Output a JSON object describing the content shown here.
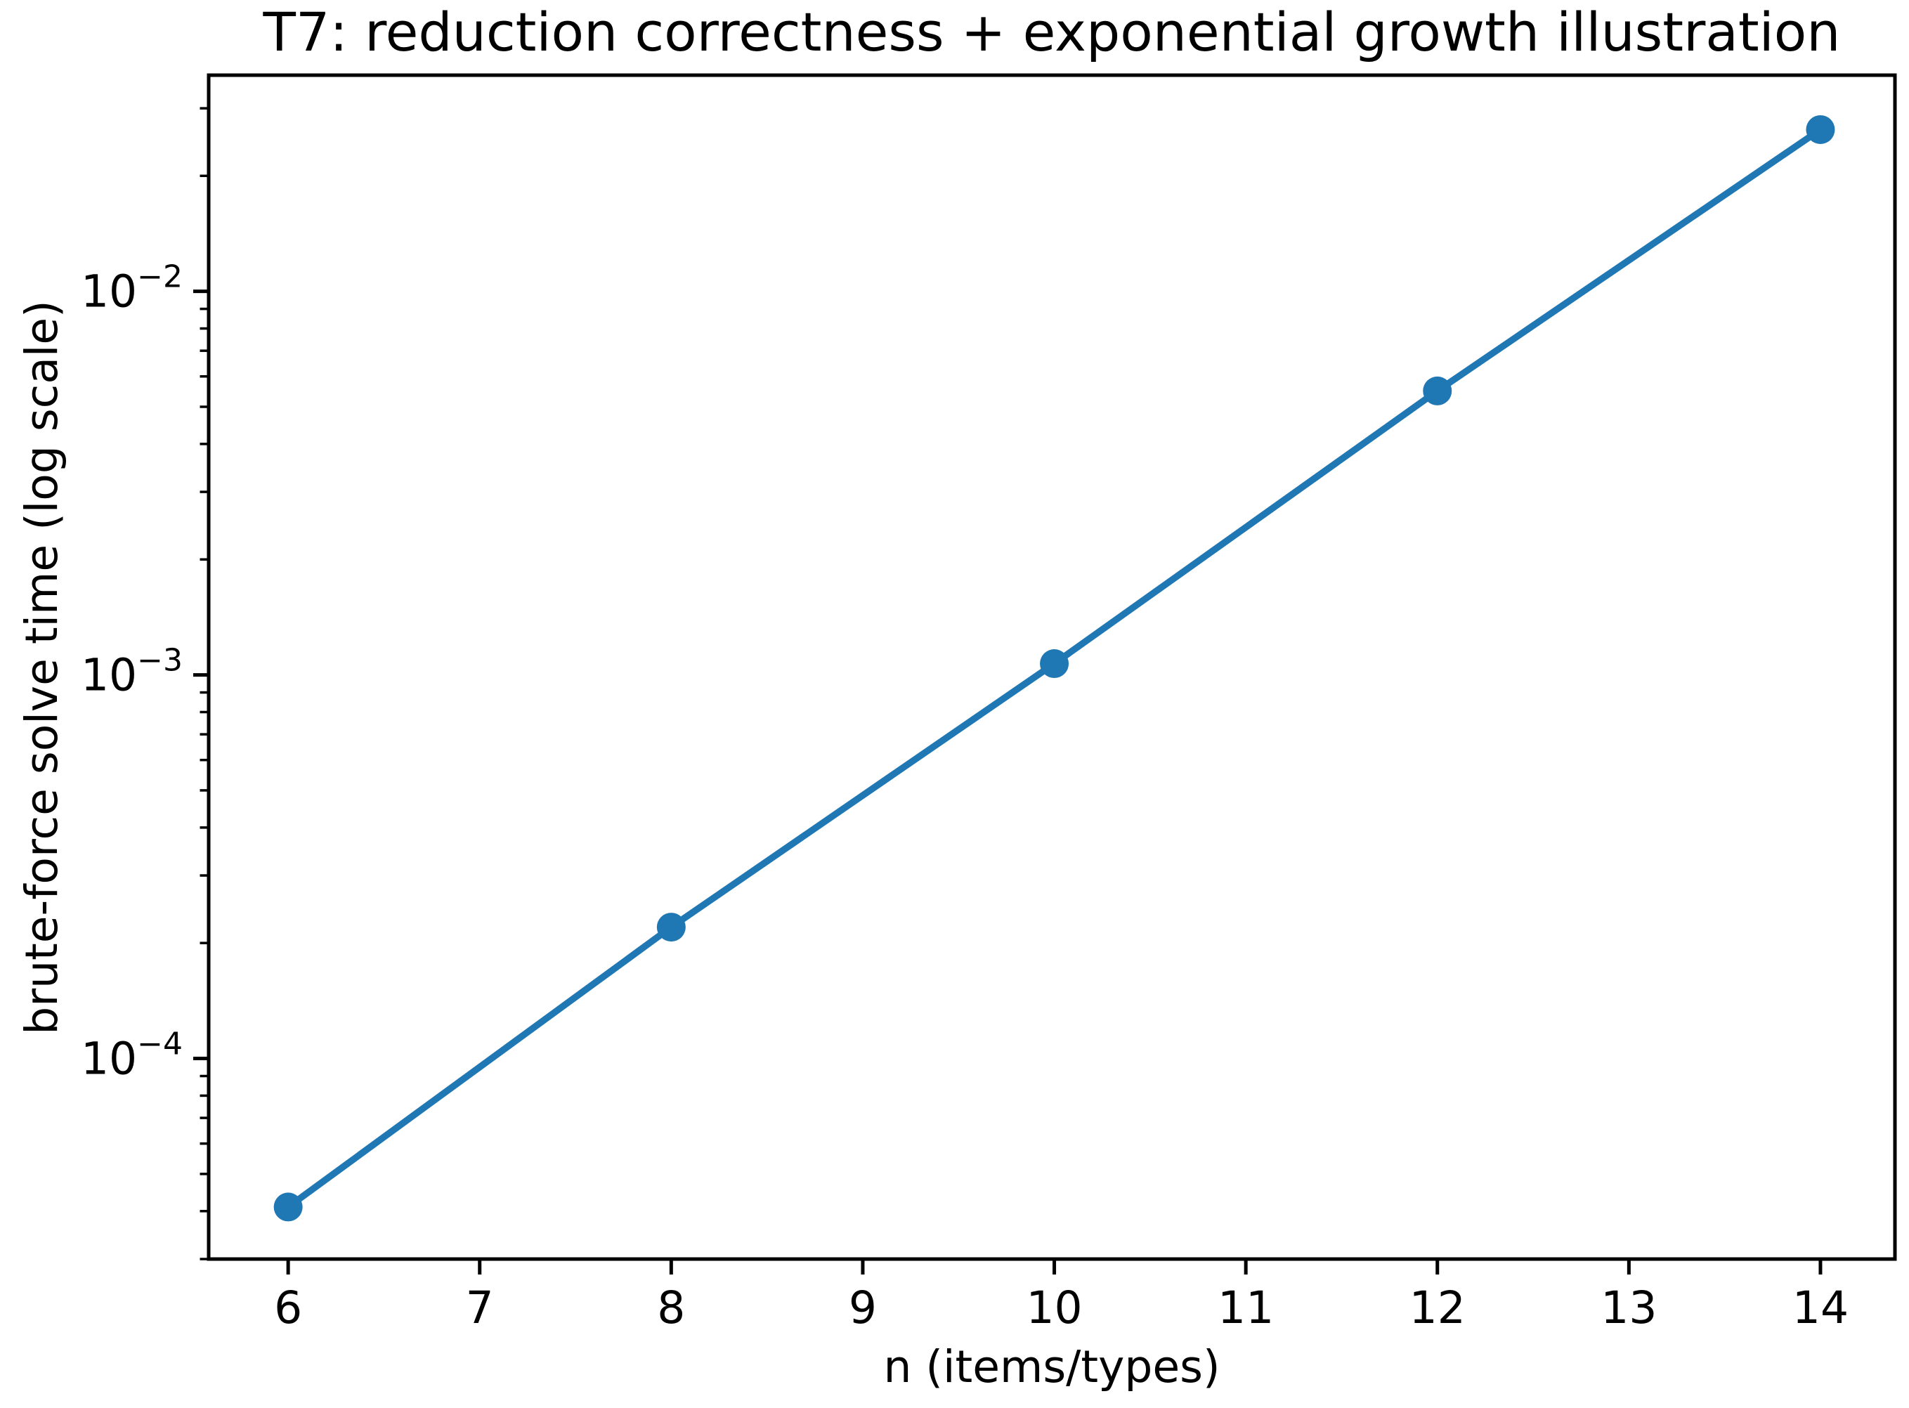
{
  "chart_data": {
    "type": "line",
    "title": "T7: reduction correctness + exponential growth illustration",
    "xlabel": "n (items/types)",
    "ylabel": "brute-force solve time (log scale)",
    "x": [
      6,
      8,
      10,
      12,
      14
    ],
    "y": [
      4.1e-05,
      0.00022,
      0.00107,
      0.0055,
      0.0264
    ],
    "x_tick_values": [
      6,
      7,
      8,
      9,
      10,
      11,
      12,
      13,
      14
    ],
    "x_tick_labels": [
      "6",
      "7",
      "8",
      "9",
      "10",
      "11",
      "12",
      "13",
      "14"
    ],
    "y_major_ticks": [
      {
        "value": 0.01,
        "base": "10",
        "exp": "−2"
      },
      {
        "value": 0.001,
        "base": "10",
        "exp": "−3"
      },
      {
        "value": 0.0001,
        "base": "10",
        "exp": "−4"
      }
    ],
    "xlim": [
      5.585,
      14.389
    ],
    "ylim": [
      3e-05,
      0.0366
    ],
    "x_scale": "linear",
    "y_scale": "log",
    "grid": false,
    "legend": "none",
    "line_color": "#1f77b4",
    "marker_color": "#1f77b4",
    "marker": "circle",
    "axis_color": "#000000",
    "background_color": "#ffffff"
  }
}
